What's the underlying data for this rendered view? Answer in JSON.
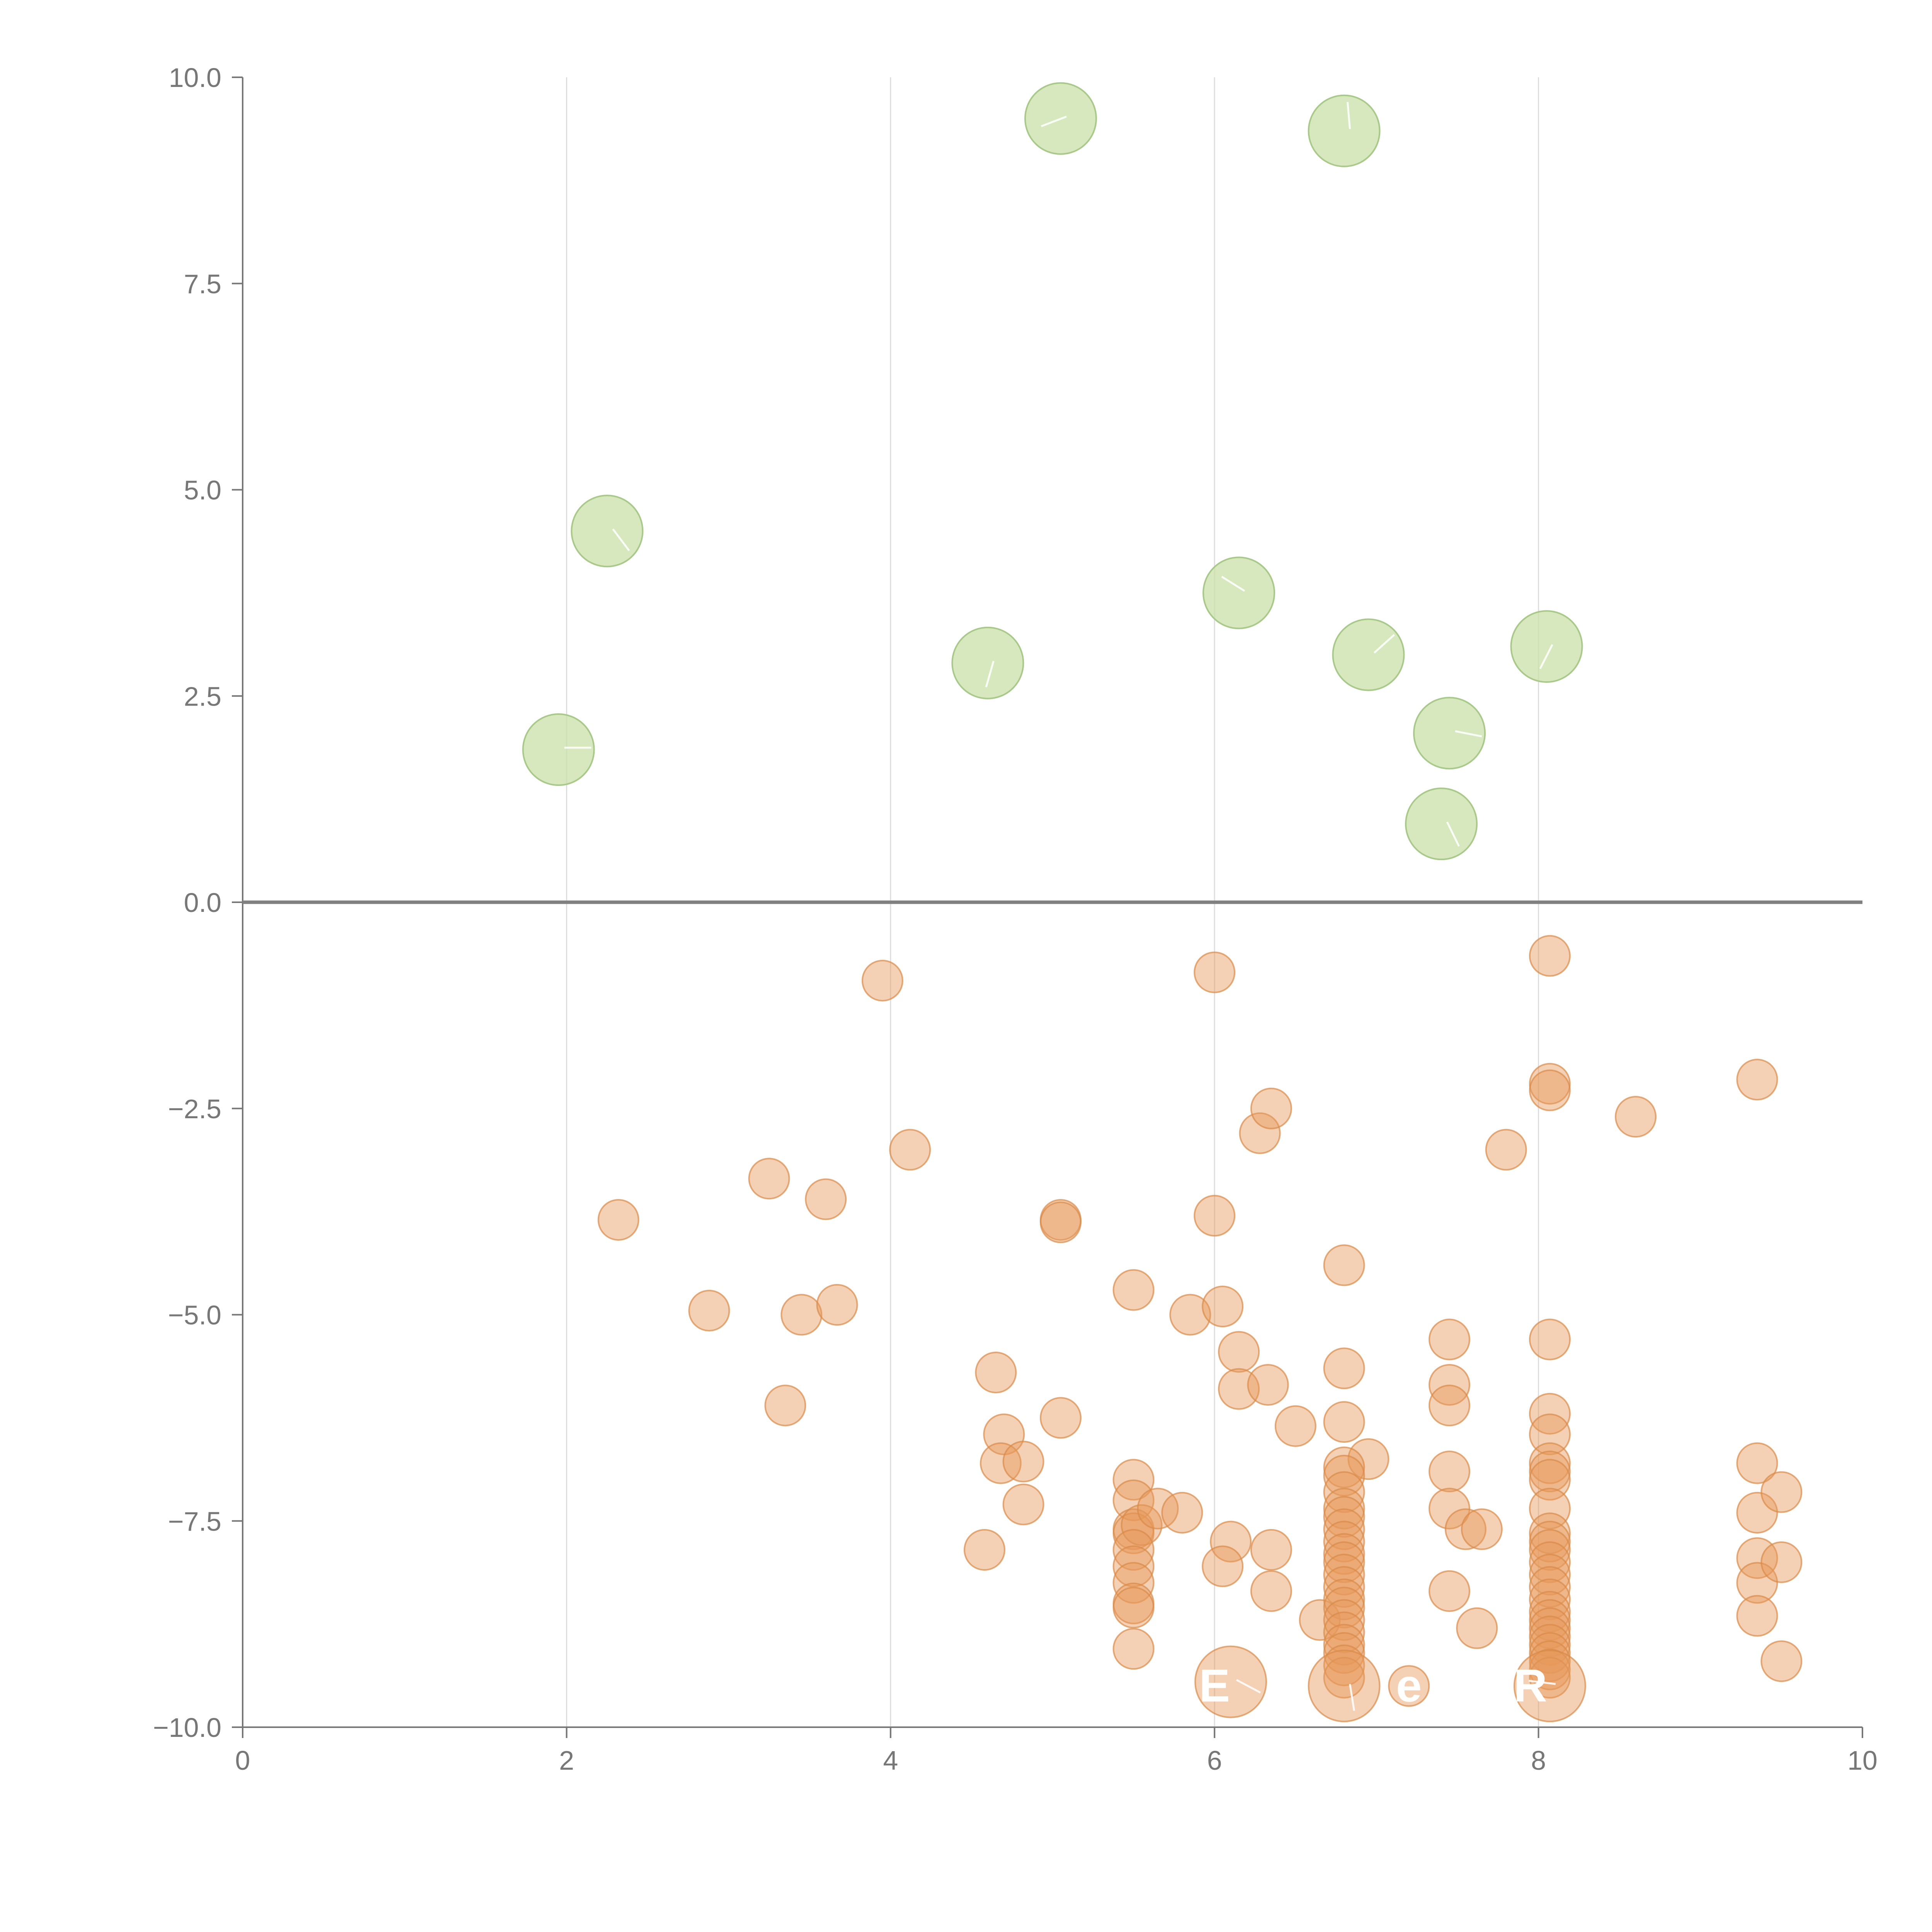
{
  "chart_data": {
    "type": "scatter",
    "title": "",
    "xlabel": "",
    "ylabel": "",
    "xlim": [
      0,
      10
    ],
    "ylim": [
      -10,
      10
    ],
    "x_ticks": [
      0,
      2,
      4,
      6,
      8,
      10
    ],
    "x_tick_labels": [
      "0",
      "2",
      "4",
      "6",
      "8",
      "10"
    ],
    "y_ticks": [
      -10,
      -7.5,
      -5,
      -2.5,
      0,
      2.5,
      5,
      7.5,
      10
    ],
    "y_tick_labels": [
      "−10.0",
      "−7.5",
      "−5.0",
      "−2.5",
      "0.0",
      "2.5",
      "5.0",
      "7.5",
      "10.0"
    ],
    "grid": {
      "vertical": true,
      "horizontal": false
    },
    "colors": {
      "positive": "#c9dfa8",
      "negative": "#e69a5c"
    },
    "inner_labels": [
      {
        "text": "E",
        "x": 6.0,
        "y": -9.5
      },
      {
        "text": "e",
        "x": 7.2,
        "y": -9.5
      },
      {
        "text": "R",
        "x": 7.95,
        "y": -9.5
      }
    ],
    "series": [
      {
        "values_xy_size": [
          [
            1.95,
            1.85,
            2
          ],
          [
            2.25,
            4.5,
            2
          ],
          [
            4.6,
            2.9,
            2
          ],
          [
            5.05,
            9.5,
            2
          ],
          [
            6.15,
            3.75,
            2
          ],
          [
            6.8,
            9.35,
            2
          ],
          [
            6.95,
            3.0,
            2
          ],
          [
            7.45,
            2.05,
            2
          ],
          [
            7.4,
            0.95,
            2
          ],
          [
            8.05,
            3.1,
            2
          ]
        ]
      },
      {
        "values_xy_size": [
          [
            3.95,
            -0.95,
            1
          ],
          [
            6.0,
            -0.85,
            1
          ],
          [
            8.07,
            -0.65,
            1
          ],
          [
            2.32,
            -3.85,
            1
          ],
          [
            3.25,
            -3.35,
            1
          ],
          [
            3.6,
            -3.6,
            1
          ],
          [
            4.12,
            -3.0,
            1
          ],
          [
            5.05,
            -3.85,
            1
          ],
          [
            5.05,
            -3.88,
            1
          ],
          [
            6.0,
            -3.8,
            1
          ],
          [
            6.28,
            -2.8,
            1
          ],
          [
            6.35,
            -2.5,
            1
          ],
          [
            7.8,
            -3.0,
            1
          ],
          [
            8.07,
            -2.2,
            1
          ],
          [
            8.07,
            -2.28,
            1
          ],
          [
            8.6,
            -2.6,
            1
          ],
          [
            9.35,
            -2.15,
            1
          ],
          [
            2.88,
            -4.95,
            1
          ],
          [
            3.45,
            -5.0,
            1
          ],
          [
            3.67,
            -4.88,
            1
          ],
          [
            3.35,
            -6.1,
            1
          ],
          [
            4.65,
            -5.7,
            1
          ],
          [
            4.7,
            -6.45,
            1
          ],
          [
            4.68,
            -6.8,
            1
          ],
          [
            4.82,
            -6.78,
            1
          ],
          [
            4.82,
            -7.3,
            1
          ],
          [
            4.58,
            -7.85,
            1
          ],
          [
            5.05,
            -6.25,
            1
          ],
          [
            5.5,
            -4.7,
            1
          ],
          [
            5.5,
            -7.0,
            1
          ],
          [
            5.5,
            -7.25,
            1
          ],
          [
            5.5,
            -7.6,
            1
          ],
          [
            5.5,
            -7.65,
            1
          ],
          [
            5.55,
            -7.55,
            1
          ],
          [
            5.5,
            -7.85,
            1
          ],
          [
            5.5,
            -8.05,
            1
          ],
          [
            5.5,
            -8.25,
            1
          ],
          [
            5.5,
            -8.5,
            1
          ],
          [
            5.5,
            -8.55,
            1
          ],
          [
            5.5,
            -9.05,
            1
          ],
          [
            5.65,
            -7.35,
            1
          ],
          [
            5.8,
            -7.4,
            1
          ],
          [
            5.85,
            -5.0,
            1
          ],
          [
            6.05,
            -4.9,
            1
          ],
          [
            6.15,
            -5.45,
            1
          ],
          [
            6.15,
            -5.9,
            1
          ],
          [
            6.33,
            -5.85,
            1
          ],
          [
            6.5,
            -6.35,
            1
          ],
          [
            6.1,
            -7.75,
            1
          ],
          [
            6.05,
            -8.05,
            1
          ],
          [
            6.35,
            -7.85,
            1
          ],
          [
            6.35,
            -8.35,
            1
          ],
          [
            6.65,
            -8.7,
            1
          ],
          [
            6.8,
            -4.4,
            1
          ],
          [
            6.8,
            -5.65,
            1
          ],
          [
            6.8,
            -6.3,
            1
          ],
          [
            6.95,
            -6.75,
            1
          ],
          [
            6.8,
            -6.85,
            1
          ],
          [
            6.8,
            -6.95,
            1
          ],
          [
            6.8,
            -7.15,
            1
          ],
          [
            6.8,
            -7.35,
            1
          ],
          [
            6.8,
            -7.45,
            1
          ],
          [
            6.8,
            -7.6,
            1
          ],
          [
            6.8,
            -7.75,
            1
          ],
          [
            6.8,
            -7.9,
            1
          ],
          [
            6.8,
            -8.0,
            1
          ],
          [
            6.8,
            -8.15,
            1
          ],
          [
            6.8,
            -8.3,
            1
          ],
          [
            6.8,
            -8.45,
            1
          ],
          [
            6.8,
            -8.55,
            1
          ],
          [
            6.8,
            -8.7,
            1
          ],
          [
            6.8,
            -8.85,
            1
          ],
          [
            6.8,
            -9.0,
            1
          ],
          [
            6.8,
            -9.1,
            1
          ],
          [
            6.8,
            -9.25,
            1
          ],
          [
            6.8,
            -9.4,
            1
          ],
          [
            7.45,
            -5.3,
            1
          ],
          [
            7.45,
            -5.85,
            1
          ],
          [
            7.45,
            -6.1,
            1
          ],
          [
            7.45,
            -6.9,
            1
          ],
          [
            7.45,
            -7.35,
            1
          ],
          [
            7.45,
            -8.35,
            1
          ],
          [
            7.55,
            -7.6,
            1
          ],
          [
            7.65,
            -7.6,
            1
          ],
          [
            7.62,
            -8.8,
            1
          ],
          [
            8.07,
            -5.3,
            1
          ],
          [
            8.07,
            -6.2,
            1
          ],
          [
            8.07,
            -6.45,
            1
          ],
          [
            8.07,
            -6.8,
            1
          ],
          [
            8.07,
            -6.9,
            1
          ],
          [
            8.07,
            -7.0,
            1
          ],
          [
            8.07,
            -7.35,
            1
          ],
          [
            8.07,
            -7.65,
            1
          ],
          [
            8.07,
            -7.75,
            1
          ],
          [
            8.07,
            -7.85,
            1
          ],
          [
            8.07,
            -8.0,
            1
          ],
          [
            8.07,
            -8.15,
            1
          ],
          [
            8.07,
            -8.3,
            1
          ],
          [
            8.07,
            -8.45,
            1
          ],
          [
            8.07,
            -8.6,
            1
          ],
          [
            8.07,
            -8.7,
            1
          ],
          [
            8.07,
            -8.8,
            1
          ],
          [
            8.07,
            -8.9,
            1
          ],
          [
            8.07,
            -9.0,
            1
          ],
          [
            8.07,
            -9.1,
            1
          ],
          [
            8.07,
            -9.2,
            1
          ],
          [
            8.07,
            -9.3,
            1
          ],
          [
            8.07,
            -9.4,
            1
          ],
          [
            9.35,
            -6.8,
            1
          ],
          [
            9.35,
            -7.4,
            1
          ],
          [
            9.35,
            -7.95,
            1
          ],
          [
            9.35,
            -8.25,
            1
          ],
          [
            9.35,
            -8.65,
            1
          ],
          [
            9.5,
            -7.15,
            1
          ],
          [
            9.5,
            -8.0,
            1
          ],
          [
            9.5,
            -9.2,
            1
          ],
          [
            6.1,
            -9.45,
            2
          ],
          [
            6.8,
            -9.5,
            2
          ],
          [
            7.2,
            -9.5,
            1
          ],
          [
            8.07,
            -9.5,
            2
          ]
        ]
      }
    ]
  }
}
